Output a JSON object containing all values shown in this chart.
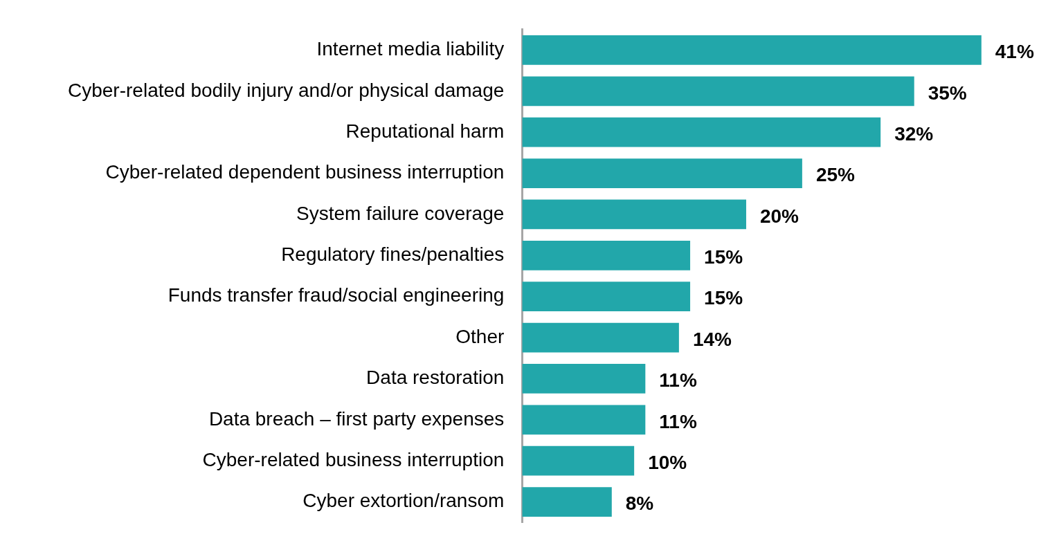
{
  "chart_data": {
    "type": "bar",
    "orientation": "horizontal",
    "categories": [
      "Internet media liability",
      "Cyber-related bodily injury and/or physical damage",
      "Reputational harm",
      "Cyber-related dependent business interruption",
      "System failure coverage",
      "Regulatory fines/penalties",
      "Funds transfer fraud/social engineering",
      "Other",
      "Data restoration",
      "Data breach – first party expenses",
      "Cyber-related business interruption",
      "Cyber extortion/ransom"
    ],
    "values": [
      41,
      35,
      32,
      25,
      20,
      15,
      15,
      14,
      11,
      11,
      10,
      8
    ],
    "value_labels": [
      "41%",
      "35%",
      "32%",
      "25%",
      "20%",
      "15%",
      "15%",
      "14%",
      "11%",
      "11%",
      "10%",
      "8%"
    ],
    "color": "#22a7aa",
    "legend": false,
    "tick_labels": "y"
  }
}
